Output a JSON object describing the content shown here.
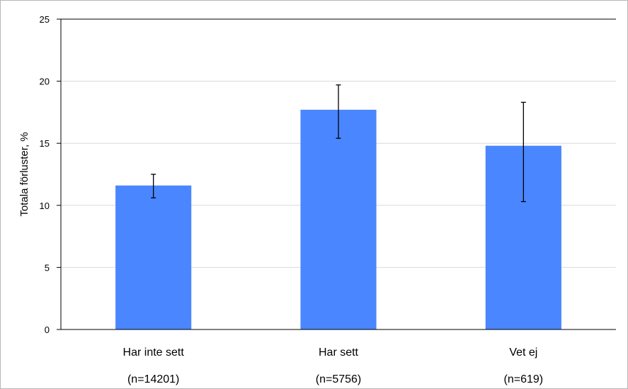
{
  "chart_data": {
    "type": "bar",
    "title": "",
    "xlabel": "",
    "ylabel": "Totala förluster, %",
    "ylim": [
      0,
      25
    ],
    "yticks": [
      0,
      5,
      10,
      15,
      20,
      25
    ],
    "grid": true,
    "categories": [
      "Har inte sett",
      "Har sett",
      "Vet ej"
    ],
    "category_counts": [
      "(n=14201)",
      "(n=5756)",
      "(n=619)"
    ],
    "values": [
      11.6,
      17.7,
      14.8
    ],
    "error_low": [
      10.6,
      15.4,
      10.3
    ],
    "error_high": [
      12.5,
      19.7,
      18.3
    ],
    "colors": {
      "bar": "#4a86ff",
      "grid": "#d9d9d9",
      "axis": "#000000"
    }
  }
}
